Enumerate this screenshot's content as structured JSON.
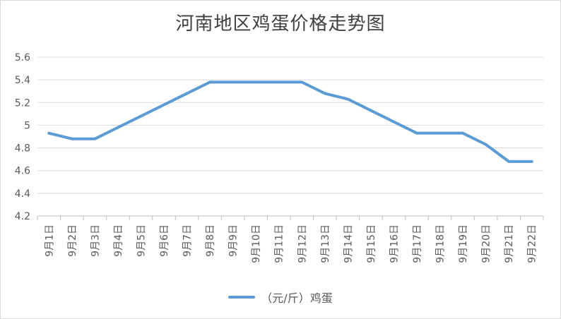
{
  "chart_data": {
    "type": "line",
    "title": "河南地区鸡蛋价格走势图",
    "categories": [
      "9月1日",
      "9月2日",
      "9月3日",
      "9月4日",
      "9月5日",
      "9月6日",
      "9月7日",
      "9月8日",
      "9月9日",
      "9月10日",
      "9月11日",
      "9月12日",
      "9月13日",
      "9月14日",
      "9月15日",
      "9月16日",
      "9月17日",
      "9月18日",
      "9月19日",
      "9月20日",
      "9月21日",
      "9月22日"
    ],
    "series": [
      {
        "name": "（元/斤）鸡蛋",
        "color": "#5b9bd5",
        "values": [
          4.93,
          4.88,
          4.88,
          4.98,
          5.08,
          5.18,
          5.28,
          5.38,
          5.38,
          5.38,
          5.38,
          5.38,
          5.28,
          5.23,
          5.13,
          5.03,
          4.93,
          4.93,
          4.93,
          4.83,
          4.68,
          4.68
        ]
      }
    ],
    "ylim": [
      4.2,
      5.6
    ],
    "yticks": [
      "4.2",
      "4.4",
      "4.6",
      "4.8",
      "5",
      "5.2",
      "5.4",
      "5.6"
    ],
    "xlabel": "",
    "ylabel": "",
    "grid": true,
    "legend_position": "bottom",
    "colors": {
      "series": "#5b9bd5",
      "grid": "#d9d9d9",
      "text": "#595959"
    }
  }
}
